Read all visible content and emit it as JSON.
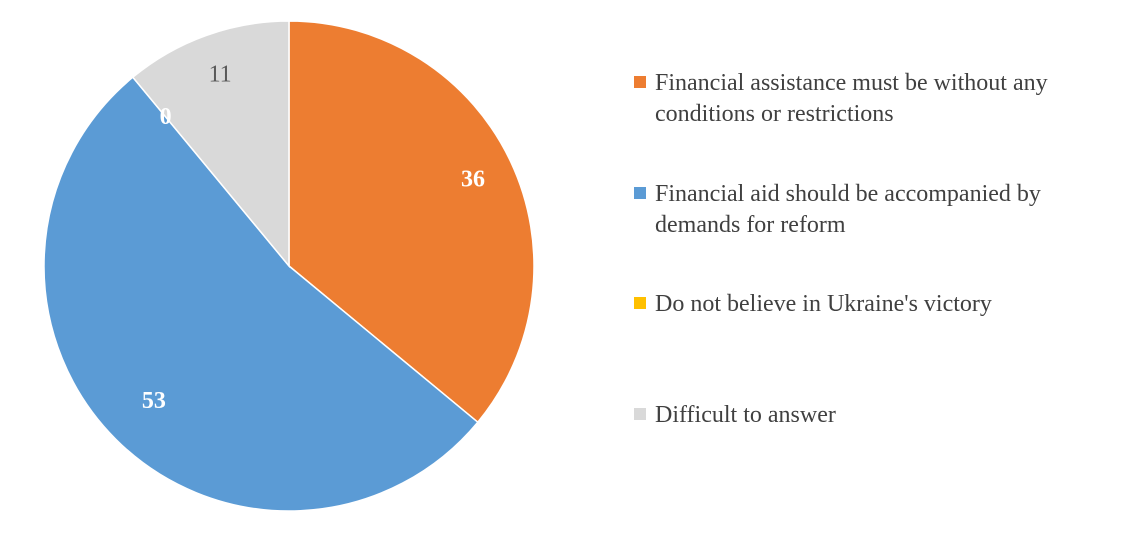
{
  "chart_data": {
    "type": "pie",
    "categories": [
      "Financial assistance must be without any conditions or restrictions",
      "Financial aid should be accompanied by demands for reform",
      "Do not believe in Ukraine's victory",
      "Difficult to answer"
    ],
    "values": [
      36,
      53,
      0,
      11
    ],
    "data_labels": [
      "36",
      "53",
      "0",
      "11"
    ],
    "colors": [
      "#ED7D31",
      "#5B9BD5",
      "#FFC000",
      "#D9D9D9"
    ],
    "label_colors": [
      "#FFFFFF",
      "#FFFFFF",
      "#FFFFFF",
      "#595959"
    ],
    "start_angle_deg": 0,
    "direction": "clockwise",
    "legend_position": "right"
  }
}
